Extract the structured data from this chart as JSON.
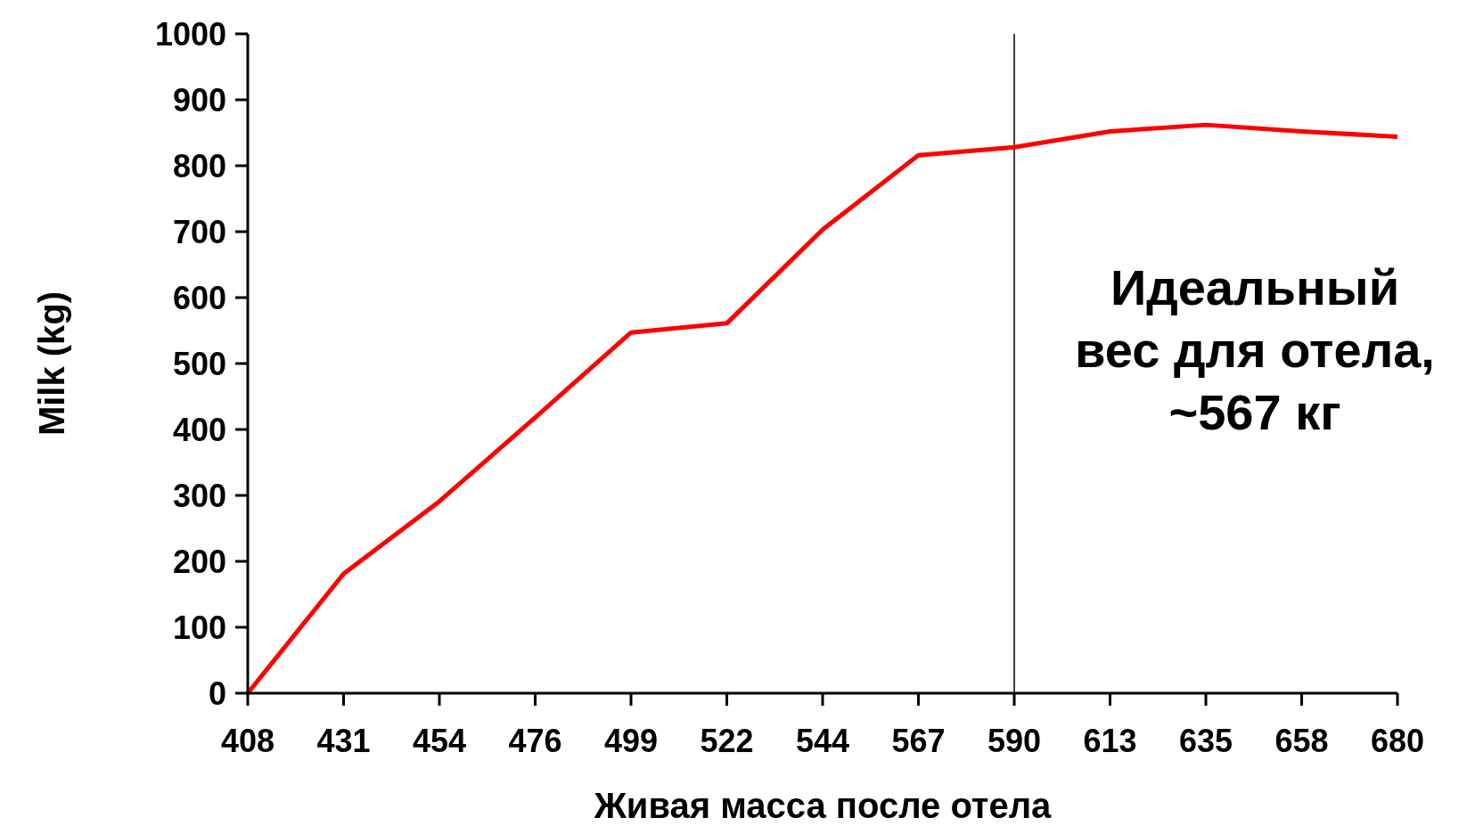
{
  "chart_data": {
    "type": "line",
    "xlabel": "Живая масса после отела",
    "ylabel": "Milk (kg)",
    "categories": [
      "408",
      "431",
      "454",
      "476",
      "499",
      "522",
      "544",
      "567",
      "590",
      "613",
      "635",
      "658",
      "680"
    ],
    "series": [
      {
        "color": "#ff0000",
        "values": [
          0,
          181,
          291,
          418,
          547,
          561,
          703,
          816,
          828,
          852,
          862,
          852,
          844
        ]
      }
    ],
    "ylim": [
      0,
      1000
    ],
    "yticks": [
      0,
      100,
      200,
      300,
      400,
      500,
      600,
      700,
      800,
      900,
      1000
    ],
    "ref_lines": [
      {
        "axis": "x",
        "value": "590",
        "color": "#000000"
      }
    ],
    "annotations": [
      "Идеальный\nвес для отела,\n~567 кг"
    ],
    "grid": false,
    "legend": false,
    "marker": "none",
    "line_style": "solid"
  }
}
